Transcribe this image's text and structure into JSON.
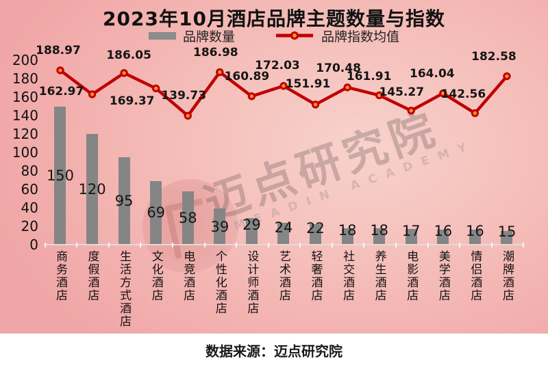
{
  "title": "2023年10月酒店品牌主题数量与指数",
  "legend": {
    "bar_label": "品牌数量",
    "line_label": "品牌指数均值"
  },
  "watermark": {
    "cn": "迈点研究院",
    "en": "MEADIN ACADEMY"
  },
  "footer": {
    "source": "数据来源：迈点研究院"
  },
  "colors": {
    "bar": "#858585",
    "legend_swatch": "#8c8c8c",
    "line": "#c00000",
    "marker_fill": "#f0932e",
    "background_edge": "#f0a6a6",
    "background_center": "#f8d2cc",
    "text": "#111111"
  },
  "chart_data": {
    "type": "bar",
    "overlay": "line",
    "title": "2023年10月酒店品牌主题数量与指数",
    "categories": [
      "商务酒店",
      "度假酒店",
      "生活方式酒店",
      "文化酒店",
      "电竞酒店",
      "个性化酒店",
      "设计师酒店",
      "艺术酒店",
      "轻奢酒店",
      "社交酒店",
      "养生酒店",
      "电影酒店",
      "美学酒店",
      "情侣酒店",
      "潮牌酒店"
    ],
    "series": [
      {
        "name": "品牌数量",
        "type": "bar",
        "values": [
          150,
          120,
          95,
          69,
          58,
          39,
          29,
          24,
          22,
          18,
          18,
          17,
          16,
          16,
          15
        ]
      },
      {
        "name": "品牌指数均值",
        "type": "line",
        "values": [
          188.97,
          162.97,
          186.05,
          169.37,
          139.73,
          186.98,
          160.89,
          172.03,
          151.91,
          170.48,
          161.91,
          145.27,
          164.04,
          142.56,
          182.58
        ]
      }
    ],
    "y_axis": {
      "min": 0,
      "max": 200,
      "step": 20
    },
    "grid": false,
    "legend_position": "top",
    "xlabel": "",
    "ylabel": "",
    "source_note": "数据来源：迈点研究院"
  }
}
